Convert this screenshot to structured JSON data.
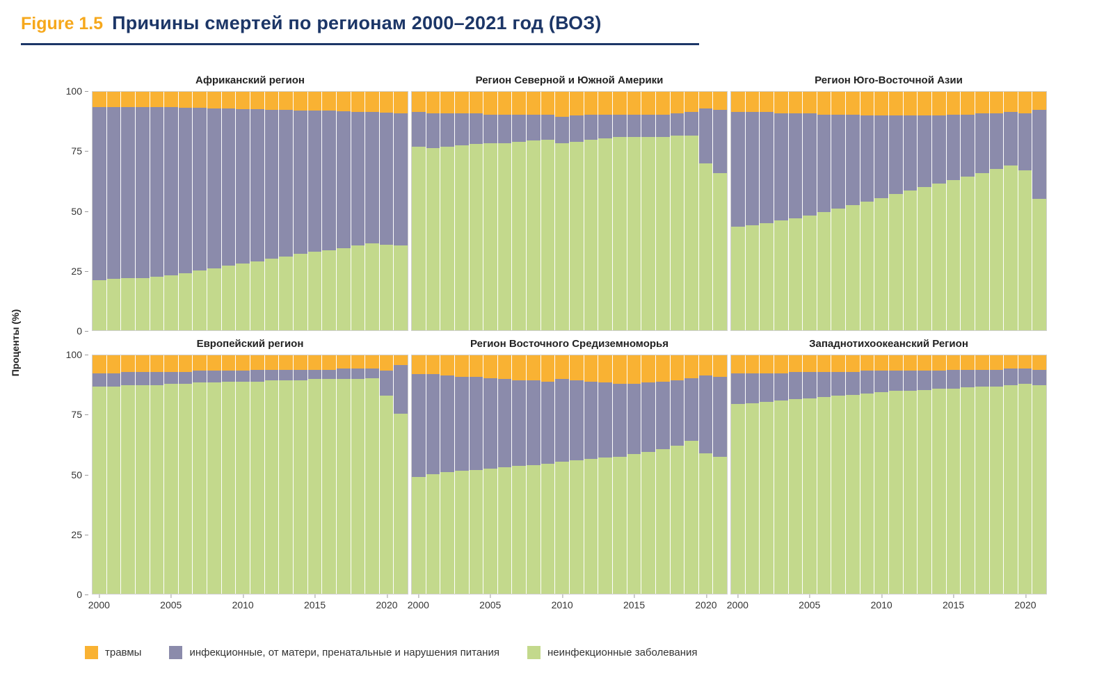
{
  "header": {
    "figure_label": "Figure 1.5",
    "title": "Причины смертей по регионам 2000–2021 год (ВОЗ)"
  },
  "axes": {
    "ylabel": "Проценты (%)",
    "yticks": [
      "100",
      "75",
      "50",
      "25",
      "0"
    ],
    "xticks": [
      "2000",
      "2005",
      "2010",
      "2015",
      "2020"
    ]
  },
  "legend": [
    {
      "label": "травмы",
      "color": "#F9B233"
    },
    {
      "label": "инфекционные, от матери, пренатальные и нарушения питания",
      "color": "#8B8BAB"
    },
    {
      "label": "неинфекционные заболевания",
      "color": "#C3D98C"
    }
  ],
  "chart_data": {
    "type": "bar",
    "stacked": true,
    "unit": "percent",
    "ylim": [
      0,
      100
    ],
    "grid": false,
    "legend_position": "bottom",
    "years": [
      2000,
      2001,
      2002,
      2003,
      2004,
      2005,
      2006,
      2007,
      2008,
      2009,
      2010,
      2011,
      2012,
      2013,
      2014,
      2015,
      2016,
      2017,
      2018,
      2019,
      2020,
      2021
    ],
    "series_order_bottom_to_top": [
      "noncommunicable",
      "infectious",
      "injuries"
    ],
    "series_labels": {
      "injuries": "травмы",
      "infectious": "инфекционные, от матери, пренатальные и нарушения питания",
      "noncommunicable": "неинфекционные заболевания"
    },
    "colors": {
      "injuries": "#F9B233",
      "infectious": "#8B8BAB",
      "noncommunicable": "#C3D98C"
    },
    "charts": [
      {
        "id": "african",
        "title": "Африканский регион",
        "noncommunicable": [
          21,
          21.5,
          22,
          22,
          22.5,
          23,
          24,
          25,
          26,
          27,
          28,
          29,
          30,
          31,
          32,
          33,
          33.5,
          34.5,
          35.5,
          36.5,
          36,
          35.5
        ],
        "infectious": [
          72.5,
          72,
          71.5,
          71.5,
          71,
          70.5,
          69.3,
          68.2,
          67,
          66,
          64.8,
          63.6,
          62.5,
          61.3,
          60.2,
          59,
          58.5,
          57.3,
          56.1,
          55,
          55.2,
          55.5
        ],
        "injuries": [
          6.5,
          6.5,
          6.5,
          6.5,
          6.5,
          6.5,
          6.7,
          6.8,
          7,
          7,
          7.2,
          7.4,
          7.5,
          7.7,
          7.8,
          8,
          8,
          8.2,
          8.4,
          8.5,
          8.8,
          9
        ]
      },
      {
        "id": "americas",
        "title": "Регион Северной и Южной Америки",
        "noncommunicable": [
          77,
          76.5,
          77,
          77.5,
          78,
          78.5,
          78.5,
          79,
          79.5,
          80,
          78.5,
          79,
          80,
          80.5,
          81,
          81,
          81,
          81,
          81.5,
          81.5,
          70,
          66
        ],
        "infectious": [
          14.5,
          14.5,
          14,
          13.5,
          13,
          12,
          12,
          11.5,
          11,
          10.5,
          11,
          11,
          10.5,
          10,
          9.5,
          9.5,
          9.5,
          9.5,
          9.5,
          10,
          23,
          26.5
        ],
        "injuries": [
          8.5,
          9,
          9,
          9,
          9,
          9.5,
          9.5,
          9.5,
          9.5,
          9.5,
          10.5,
          10,
          9.5,
          9.5,
          9.5,
          9.5,
          9.5,
          9.5,
          9,
          8.5,
          7,
          7.5
        ]
      },
      {
        "id": "south-east-asia",
        "title": "Регион Юго-Восточной Азии",
        "noncommunicable": [
          43.5,
          44,
          45,
          46,
          47,
          48,
          49.5,
          51,
          52.5,
          54,
          55.5,
          57,
          58.5,
          60,
          61.5,
          63,
          64.5,
          66,
          67.5,
          69,
          67,
          55
        ],
        "infectious": [
          48,
          47.5,
          46.5,
          45,
          44,
          43,
          41,
          39.5,
          38,
          36,
          34.5,
          33,
          31.5,
          30,
          28.5,
          27.5,
          26,
          25,
          23.5,
          22.5,
          24,
          37.5
        ],
        "injuries": [
          8.5,
          8.5,
          8.5,
          9,
          9,
          9,
          9.5,
          9.5,
          9.5,
          10,
          10,
          10,
          10,
          10,
          10,
          9.5,
          9.5,
          9,
          9,
          8.5,
          9,
          7.5
        ]
      },
      {
        "id": "european",
        "title": "Европейский регион",
        "noncommunicable": [
          87,
          87,
          87.5,
          87.5,
          87.5,
          88,
          88,
          88.5,
          88.5,
          89,
          89,
          89,
          89.5,
          89.5,
          89.5,
          90,
          90,
          90,
          90,
          90.5,
          83,
          75.5
        ],
        "infectious": [
          5.5,
          5.5,
          5.5,
          5.5,
          5.5,
          5,
          5,
          5,
          5,
          4.5,
          4.5,
          5,
          4.5,
          4.5,
          4.5,
          4,
          4,
          4.5,
          4.5,
          4,
          10.5,
          20.5
        ],
        "injuries": [
          7.5,
          7.5,
          7,
          7,
          7,
          7,
          7,
          6.5,
          6.5,
          6.5,
          6.5,
          6,
          6,
          6,
          6,
          6,
          6,
          5.5,
          5.5,
          5.5,
          6.5,
          4
        ]
      },
      {
        "id": "eastern-mediterranean",
        "title": "Регион Восточного Средиземноморья",
        "noncommunicable": [
          49,
          50,
          51,
          51.5,
          52,
          52.5,
          53,
          53.5,
          54,
          54.5,
          55.5,
          56,
          56.5,
          57,
          57.5,
          58.5,
          59.5,
          60.5,
          62,
          64,
          59,
          57.5
        ],
        "infectious": [
          43,
          42,
          40.5,
          39.5,
          39,
          38,
          37,
          36,
          35.5,
          34.5,
          34.5,
          33.5,
          32.5,
          31.5,
          30.5,
          29.5,
          29,
          28.5,
          27.5,
          26.5,
          32.5,
          33.5
        ],
        "injuries": [
          8,
          8,
          8.5,
          9,
          9,
          9.5,
          10,
          10.5,
          10.5,
          11,
          10,
          10.5,
          11,
          11.5,
          12,
          12,
          11.5,
          11,
          10.5,
          9.5,
          8.5,
          9
        ]
      },
      {
        "id": "western-pacific",
        "title": "Западнотихоокеанский Регион",
        "noncommunicable": [
          79.5,
          80,
          80.5,
          81,
          81.5,
          82,
          82.5,
          83,
          83.5,
          84,
          84.5,
          85,
          85,
          85.5,
          86,
          86,
          86.5,
          87,
          87,
          87.5,
          88,
          87.5
        ],
        "infectious": [
          13,
          12.5,
          12,
          11.5,
          11.5,
          11,
          10.5,
          10,
          9.5,
          9.5,
          9,
          8.5,
          8.5,
          8,
          7.5,
          8,
          7.5,
          7,
          7,
          7,
          6.5,
          6.5
        ],
        "injuries": [
          7.5,
          7.5,
          7.5,
          7.5,
          7,
          7,
          7,
          7,
          7,
          6.5,
          6.5,
          6.5,
          6.5,
          6.5,
          6.5,
          6,
          6,
          6,
          6,
          5.5,
          5.5,
          6
        ]
      }
    ]
  }
}
